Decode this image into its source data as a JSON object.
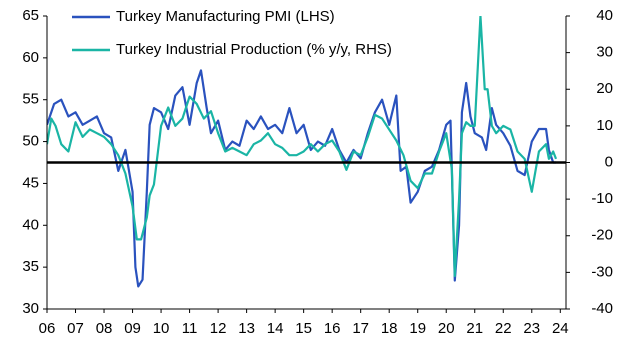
{
  "chart_data": {
    "type": "line",
    "xlim": [
      2006,
      2024.2
    ],
    "xticks": [
      {
        "value": 2006,
        "label": "06"
      },
      {
        "value": 2007,
        "label": "07"
      },
      {
        "value": 2008,
        "label": "08"
      },
      {
        "value": 2009,
        "label": "09"
      },
      {
        "value": 2010,
        "label": "10"
      },
      {
        "value": 2011,
        "label": "11"
      },
      {
        "value": 2012,
        "label": "12"
      },
      {
        "value": 2013,
        "label": "13"
      },
      {
        "value": 2014,
        "label": "14"
      },
      {
        "value": 2015,
        "label": "15"
      },
      {
        "value": 2016,
        "label": "16"
      },
      {
        "value": 2017,
        "label": "17"
      },
      {
        "value": 2018,
        "label": "18"
      },
      {
        "value": 2019,
        "label": "19"
      },
      {
        "value": 2020,
        "label": "20"
      },
      {
        "value": 2021,
        "label": "21"
      },
      {
        "value": 2022,
        "label": "22"
      },
      {
        "value": 2023,
        "label": "23"
      },
      {
        "value": 2024,
        "label": "24"
      }
    ],
    "ylim": [
      30,
      65
    ],
    "yticks": [
      30,
      35,
      40,
      45,
      50,
      55,
      60,
      65
    ],
    "y2lim": [
      -40,
      40
    ],
    "y2ticks": [
      -40,
      -30,
      -20,
      -10,
      0,
      10,
      20,
      30,
      40
    ],
    "hline_y2": 0,
    "legend": "top-left",
    "series": [
      {
        "name": "Turkey Manufacturing PMI (LHS)",
        "color": "#2a52be",
        "axis": "y",
        "x": [
          2006.0,
          2006.25,
          2006.5,
          2006.75,
          2007.0,
          2007.25,
          2007.5,
          2007.75,
          2008.0,
          2008.25,
          2008.5,
          2008.75,
          2009.0,
          2009.1,
          2009.2,
          2009.35,
          2009.5,
          2009.6,
          2009.75,
          2010.0,
          2010.25,
          2010.5,
          2010.75,
          2011.0,
          2011.25,
          2011.4,
          2011.6,
          2011.75,
          2012.0,
          2012.25,
          2012.5,
          2012.75,
          2013.0,
          2013.25,
          2013.5,
          2013.75,
          2014.0,
          2014.25,
          2014.5,
          2014.75,
          2015.0,
          2015.25,
          2015.5,
          2015.75,
          2016.0,
          2016.25,
          2016.5,
          2016.75,
          2017.0,
          2017.25,
          2017.5,
          2017.75,
          2018.0,
          2018.25,
          2018.4,
          2018.6,
          2018.75,
          2019.0,
          2019.25,
          2019.5,
          2019.75,
          2020.0,
          2020.15,
          2020.3,
          2020.45,
          2020.55,
          2020.7,
          2020.85,
          2021.0,
          2021.25,
          2021.4,
          2021.6,
          2021.75,
          2022.0,
          2022.25,
          2022.5,
          2022.75,
          2023.0,
          2023.25,
          2023.5,
          2023.6,
          2023.75,
          2023.85
        ],
        "values": [
          52,
          54.5,
          55,
          53,
          53.5,
          52,
          52.5,
          53,
          51,
          50.5,
          46.5,
          49,
          44,
          35,
          32.7,
          33.5,
          44,
          52,
          54,
          53.5,
          51.5,
          55.5,
          56.5,
          52,
          57,
          58.5,
          54,
          51,
          52.5,
          49,
          50,
          49.5,
          52.5,
          51.5,
          53,
          51.5,
          52,
          51,
          54,
          51,
          52,
          49,
          50,
          49.5,
          51.5,
          49,
          47.5,
          49,
          48,
          51,
          53.5,
          55,
          52,
          55.5,
          46.5,
          47,
          42.7,
          44,
          46.5,
          47,
          49,
          52,
          52.5,
          33.4,
          40,
          53.5,
          57,
          53,
          51,
          50.5,
          49,
          54,
          52,
          51,
          49.5,
          46.5,
          46,
          50,
          51.5,
          51.5,
          49,
          47.5,
          47.5
        ]
      },
      {
        "name": "Turkey Industrial Production (% y/y, RHS)",
        "color": "#1ab5a5",
        "axis": "y2",
        "x": [
          2006.0,
          2006.15,
          2006.3,
          2006.5,
          2006.75,
          2007.0,
          2007.25,
          2007.5,
          2007.75,
          2008.0,
          2008.25,
          2008.5,
          2008.75,
          2009.0,
          2009.15,
          2009.3,
          2009.5,
          2009.6,
          2009.75,
          2010.0,
          2010.25,
          2010.5,
          2010.75,
          2011.0,
          2011.25,
          2011.5,
          2011.75,
          2012.0,
          2012.25,
          2012.5,
          2012.75,
          2013.0,
          2013.25,
          2013.5,
          2013.75,
          2014.0,
          2014.25,
          2014.5,
          2014.75,
          2015.0,
          2015.25,
          2015.5,
          2015.75,
          2016.0,
          2016.25,
          2016.5,
          2016.75,
          2017.0,
          2017.25,
          2017.5,
          2017.75,
          2018.0,
          2018.25,
          2018.5,
          2018.75,
          2019.0,
          2019.25,
          2019.5,
          2019.75,
          2020.0,
          2020.2,
          2020.3,
          2020.45,
          2020.55,
          2020.7,
          2020.85,
          2021.0,
          2021.2,
          2021.35,
          2021.45,
          2021.6,
          2021.75,
          2022.0,
          2022.25,
          2022.5,
          2022.75,
          2023.0,
          2023.25,
          2023.5,
          2023.6,
          2023.75,
          2023.85
        ],
        "values": [
          5,
          12,
          10,
          5,
          3,
          11,
          7,
          9,
          8,
          7,
          5,
          2,
          -3,
          -12,
          -21,
          -21,
          -15,
          -9,
          -6,
          10,
          15,
          10,
          12,
          18,
          16,
          12,
          14,
          8,
          3,
          4,
          3,
          2,
          5,
          6,
          8,
          5,
          4,
          2,
          2,
          3,
          5,
          3,
          5,
          6,
          3,
          -2,
          3,
          2,
          7,
          13,
          12,
          9,
          6,
          2,
          -5,
          -7,
          -3,
          -3,
          3,
          8,
          -2,
          -31,
          -10,
          8,
          11,
          10,
          10,
          40,
          20,
          20,
          10,
          8,
          10,
          9,
          3,
          1,
          -8,
          3,
          5,
          1,
          3,
          1
        ]
      }
    ]
  }
}
